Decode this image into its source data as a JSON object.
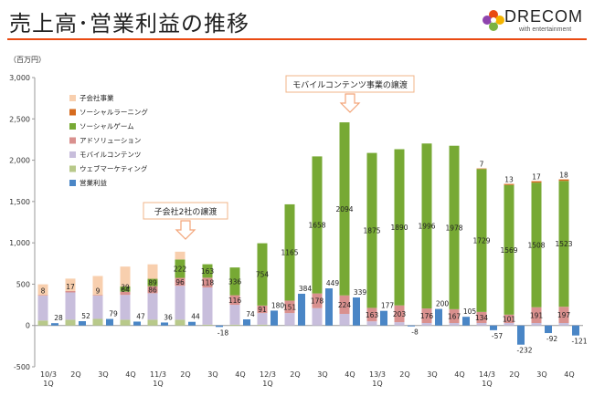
{
  "page": {
    "title": "売上高･営業利益の推移",
    "unit": "（百万円）",
    "logo": {
      "name": "DRECOM",
      "tagline": "with entertainment"
    }
  },
  "chart_data": {
    "type": "bar",
    "stacked": true,
    "categories": [
      "10/3 1Q",
      "2Q",
      "3Q",
      "4Q",
      "11/3 1Q",
      "2Q",
      "3Q",
      "4Q",
      "12/3 1Q",
      "2Q",
      "3Q",
      "4Q",
      "13/3 1Q",
      "2Q",
      "3Q",
      "4Q",
      "14/3 1Q",
      "2Q",
      "3Q",
      "4Q"
    ],
    "category_labels": [
      [
        "10/3",
        "1Q"
      ],
      [
        "2Q"
      ],
      [
        "3Q"
      ],
      [
        "4Q"
      ],
      [
        "11/3",
        "1Q"
      ],
      [
        "2Q"
      ],
      [
        "3Q"
      ],
      [
        "4Q"
      ],
      [
        "12/3",
        "1Q"
      ],
      [
        "2Q"
      ],
      [
        "3Q"
      ],
      [
        "4Q"
      ],
      [
        "13/3",
        "1Q"
      ],
      [
        "2Q"
      ],
      [
        "3Q"
      ],
      [
        "4Q"
      ],
      [
        "14/3",
        "1Q"
      ],
      [
        "2Q"
      ],
      [
        "3Q"
      ],
      [
        "4Q"
      ]
    ],
    "ylim": [
      -500,
      3000
    ],
    "yticks": [
      -500,
      0,
      500,
      1000,
      1500,
      2000,
      2500,
      3000
    ],
    "ytick_labels": [
      "-500",
      "0",
      "500",
      "1,000",
      "1,500",
      "2,000",
      "2,500",
      "3,000"
    ],
    "legend_position": "top-left",
    "stack_series": [
      {
        "name": "ウェブマーケティング",
        "color": "#b8c98a",
        "values": [
          60,
          70,
          80,
          70,
          70,
          70,
          10,
          10,
          10,
          0,
          0,
          0,
          0,
          0,
          0,
          0,
          0,
          0,
          0,
          0
        ]
      },
      {
        "name": "モバイルコンテンツ",
        "color": "#c8bedc",
        "values": [
          300,
          330,
          280,
          300,
          320,
          410,
          450,
          240,
          140,
          150,
          210,
          140,
          50,
          40,
          30,
          30,
          30,
          30,
          30,
          30
        ]
      },
      {
        "name": "アドソリューション",
        "color": "#d9908e",
        "values": [
          8,
          17,
          9,
          39,
          86,
          96,
          118,
          116,
          91,
          151,
          178,
          224,
          163,
          203,
          176,
          167,
          134,
          101,
          191,
          197
        ]
      },
      {
        "name": "ソーシャルゲーム",
        "color": "#77a934",
        "values": [
          0,
          0,
          0,
          64,
          89,
          222,
          163,
          336,
          754,
          1165,
          1658,
          2094,
          1875,
          1890,
          1996,
          1978,
          1729,
          1569,
          1508,
          1523
        ]
      },
      {
        "name": "ソーシャルラーニング",
        "color": "#d66b1e",
        "values": [
          0,
          0,
          0,
          0,
          0,
          0,
          0,
          0,
          0,
          0,
          0,
          0,
          0,
          0,
          0,
          0,
          7,
          13,
          17,
          18
        ]
      },
      {
        "name": "子会社事業",
        "color": "#f8cfae",
        "values": [
          130,
          150,
          230,
          240,
          175,
          95,
          0,
          0,
          0,
          0,
          0,
          0,
          0,
          0,
          0,
          0,
          0,
          0,
          0,
          0
        ]
      }
    ],
    "operating_profit": {
      "name": "営業利益",
      "color": "#4a86c6",
      "values": [
        28,
        52,
        79,
        47,
        36,
        44,
        -18,
        74,
        180,
        384,
        449,
        339,
        177,
        -8,
        200,
        105,
        -57,
        -232,
        -92,
        -121
      ]
    },
    "data_labels": {
      "アドソリューション": [
        8,
        17,
        9,
        39,
        86,
        96,
        118,
        116,
        91,
        151,
        178,
        224,
        163,
        203,
        176,
        167,
        134,
        101,
        191,
        197
      ],
      "ソーシャルゲーム": [
        null,
        null,
        null,
        64,
        89,
        222,
        163,
        336,
        754,
        1165,
        1658,
        2094,
        1875,
        1890,
        1996,
        1978,
        1729,
        1569,
        1508,
        1523
      ],
      "ソーシャルラーニング": [
        null,
        null,
        null,
        null,
        null,
        null,
        null,
        null,
        null,
        null,
        null,
        null,
        null,
        null,
        null,
        null,
        7,
        13,
        17,
        18
      ],
      "営業利益": [
        "28",
        "52",
        "79",
        "47",
        "36",
        "44",
        "-18",
        "74",
        "180",
        "384",
        "449",
        "339",
        "177",
        "-8",
        "200",
        "105",
        "-57",
        "-232",
        "-92",
        "-121"
      ]
    },
    "legend": [
      "子会社事業",
      "ソーシャルラーニング",
      "ソーシャルゲーム",
      "アドソリューション",
      "モバイルコンテンツ",
      "ウェブマーケティング",
      "営業利益"
    ],
    "annotations": [
      {
        "text": "子会社2社の譲渡",
        "category_index": 5
      },
      {
        "text": "モバイルコンテンツ事業の譲渡",
        "category_index": 11
      }
    ]
  }
}
